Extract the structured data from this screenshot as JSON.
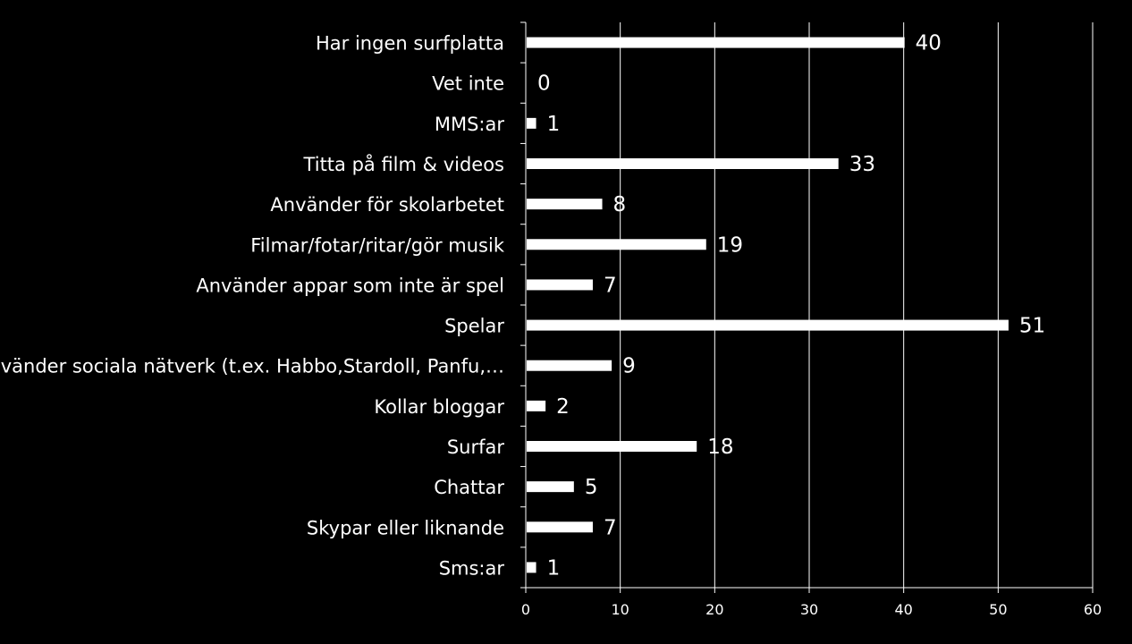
{
  "chart_data": {
    "type": "bar",
    "orientation": "horizontal",
    "title": "",
    "xlabel": "",
    "ylabel": "",
    "categories": [
      "Har ingen surfplatta",
      "Vet inte",
      "MMS:ar",
      "Titta på film & videos",
      "Använder för skolarbetet",
      "Filmar/fotar/ritar/gör musik",
      "Använder appar som inte är spel",
      "Spelar",
      "Använder sociala nätverk (t.ex. Habbo,Stardoll, Panfu,…",
      "Kollar bloggar",
      "Surfar",
      "Chattar",
      "Skypar eller liknande",
      "Sms:ar"
    ],
    "values": [
      40,
      0,
      1,
      33,
      8,
      19,
      7,
      51,
      9,
      2,
      18,
      5,
      7,
      1
    ],
    "data_labels": [
      "40",
      "0",
      "1",
      "33",
      "8",
      "19",
      "7",
      "51",
      "9",
      "2",
      "18",
      "5",
      "7",
      "1"
    ],
    "xlim": [
      0,
      60
    ],
    "x_ticks": [
      0,
      10,
      20,
      30,
      40,
      50,
      60
    ],
    "x_tick_labels": [
      "0",
      "10",
      "20",
      "30",
      "40",
      "50",
      "60"
    ],
    "grid": "vertical",
    "legend": "none",
    "colors": {
      "background": "#000000",
      "bar": "#ffffff",
      "text": "#ffffff",
      "grid": "#ffffff"
    }
  }
}
